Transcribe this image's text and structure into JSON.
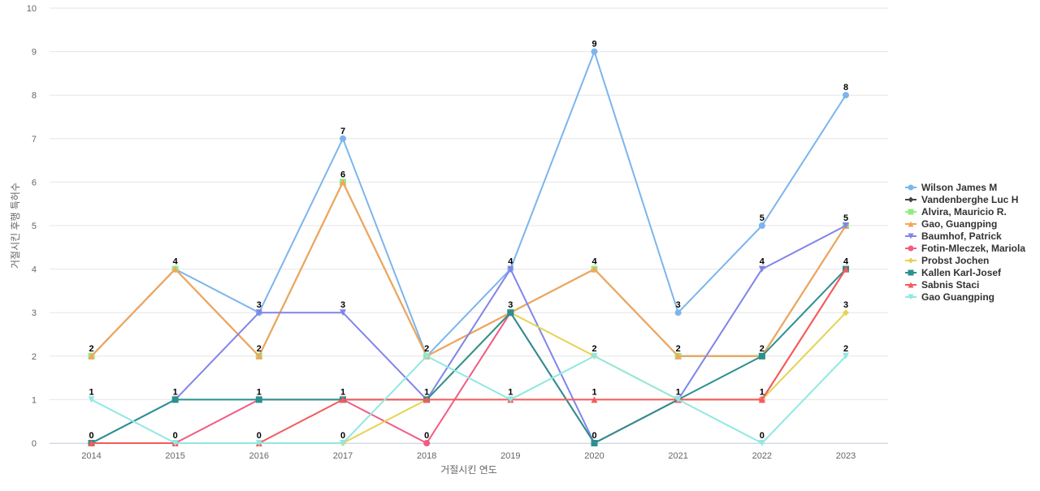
{
  "chart_data": {
    "type": "line",
    "xlabel": "거절시킨 연도",
    "ylabel": "거절시킨 후행 특허수",
    "ylim": [
      0,
      10
    ],
    "yticks": [
      0,
      1,
      2,
      3,
      4,
      5,
      6,
      7,
      8,
      9,
      10
    ],
    "categories": [
      "2014",
      "2015",
      "2016",
      "2017",
      "2018",
      "2019",
      "2020",
      "2021",
      "2022",
      "2023"
    ],
    "grid": true,
    "legend_position": "right",
    "series": [
      {
        "name": "Wilson James M",
        "color": "#7cb5ec",
        "marker": "circle",
        "values": [
          2,
          4,
          3,
          7,
          2,
          4,
          9,
          3,
          5,
          8
        ]
      },
      {
        "name": "Vandenberghe Luc H",
        "color": "#434348",
        "marker": "diamond",
        "values": [
          2,
          4,
          2,
          6,
          2,
          3,
          4,
          2,
          2,
          5
        ]
      },
      {
        "name": "Alvira, Mauricio R.",
        "color": "#90ed7d",
        "marker": "square",
        "values": [
          2,
          4,
          2,
          6,
          2,
          3,
          4,
          2,
          2,
          5
        ]
      },
      {
        "name": "Gao, Guangping",
        "color": "#f7a35c",
        "marker": "triangle",
        "values": [
          2,
          4,
          2,
          6,
          2,
          3,
          4,
          2,
          2,
          5
        ]
      },
      {
        "name": "Baumhof, Patrick",
        "color": "#8085e9",
        "marker": "triangle-down",
        "values": [
          0,
          1,
          3,
          3,
          1,
          4,
          0,
          1,
          4,
          5
        ]
      },
      {
        "name": "Fotin-Mleczek, Mariola",
        "color": "#f15c80",
        "marker": "circle",
        "values": [
          0,
          0,
          1,
          1,
          0,
          3,
          0,
          1,
          1,
          4
        ]
      },
      {
        "name": "Probst Jochen",
        "color": "#e4d354",
        "marker": "diamond",
        "values": [
          0,
          0,
          0,
          0,
          1,
          3,
          2,
          1,
          1,
          3
        ]
      },
      {
        "name": "Kallen Karl-Josef",
        "color": "#2b908f",
        "marker": "square",
        "values": [
          0,
          1,
          1,
          1,
          1,
          3,
          0,
          1,
          2,
          4
        ]
      },
      {
        "name": "Sabnis Staci",
        "color": "#f45b5b",
        "marker": "triangle",
        "values": [
          0,
          0,
          0,
          1,
          1,
          1,
          1,
          1,
          1,
          4
        ]
      },
      {
        "name": "Gao Guangping",
        "color": "#91e8e1",
        "marker": "triangle-down",
        "values": [
          1,
          0,
          0,
          0,
          2,
          1,
          2,
          1,
          0,
          2
        ]
      }
    ],
    "data_labels": [
      {
        "category": "2014",
        "values": [
          "2",
          "1",
          "0"
        ]
      },
      {
        "category": "2015",
        "values": [
          "4",
          "1",
          "0"
        ]
      },
      {
        "category": "2016",
        "values": [
          "3",
          "2",
          "1",
          "0"
        ]
      },
      {
        "category": "2017",
        "values": [
          "7",
          "6",
          "3",
          "1",
          "0"
        ]
      },
      {
        "category": "2018",
        "values": [
          "2",
          "1",
          "0"
        ]
      },
      {
        "category": "2019",
        "values": [
          "4",
          "3",
          "1"
        ]
      },
      {
        "category": "2020",
        "values": [
          "9",
          "4",
          "2",
          "1",
          "0"
        ]
      },
      {
        "category": "2021",
        "values": [
          "3",
          "2",
          "1"
        ]
      },
      {
        "category": "2022",
        "values": [
          "5",
          "4",
          "2",
          "1",
          "0"
        ]
      },
      {
        "category": "2023",
        "values": [
          "8",
          "5",
          "4",
          "3",
          "2"
        ]
      }
    ]
  }
}
